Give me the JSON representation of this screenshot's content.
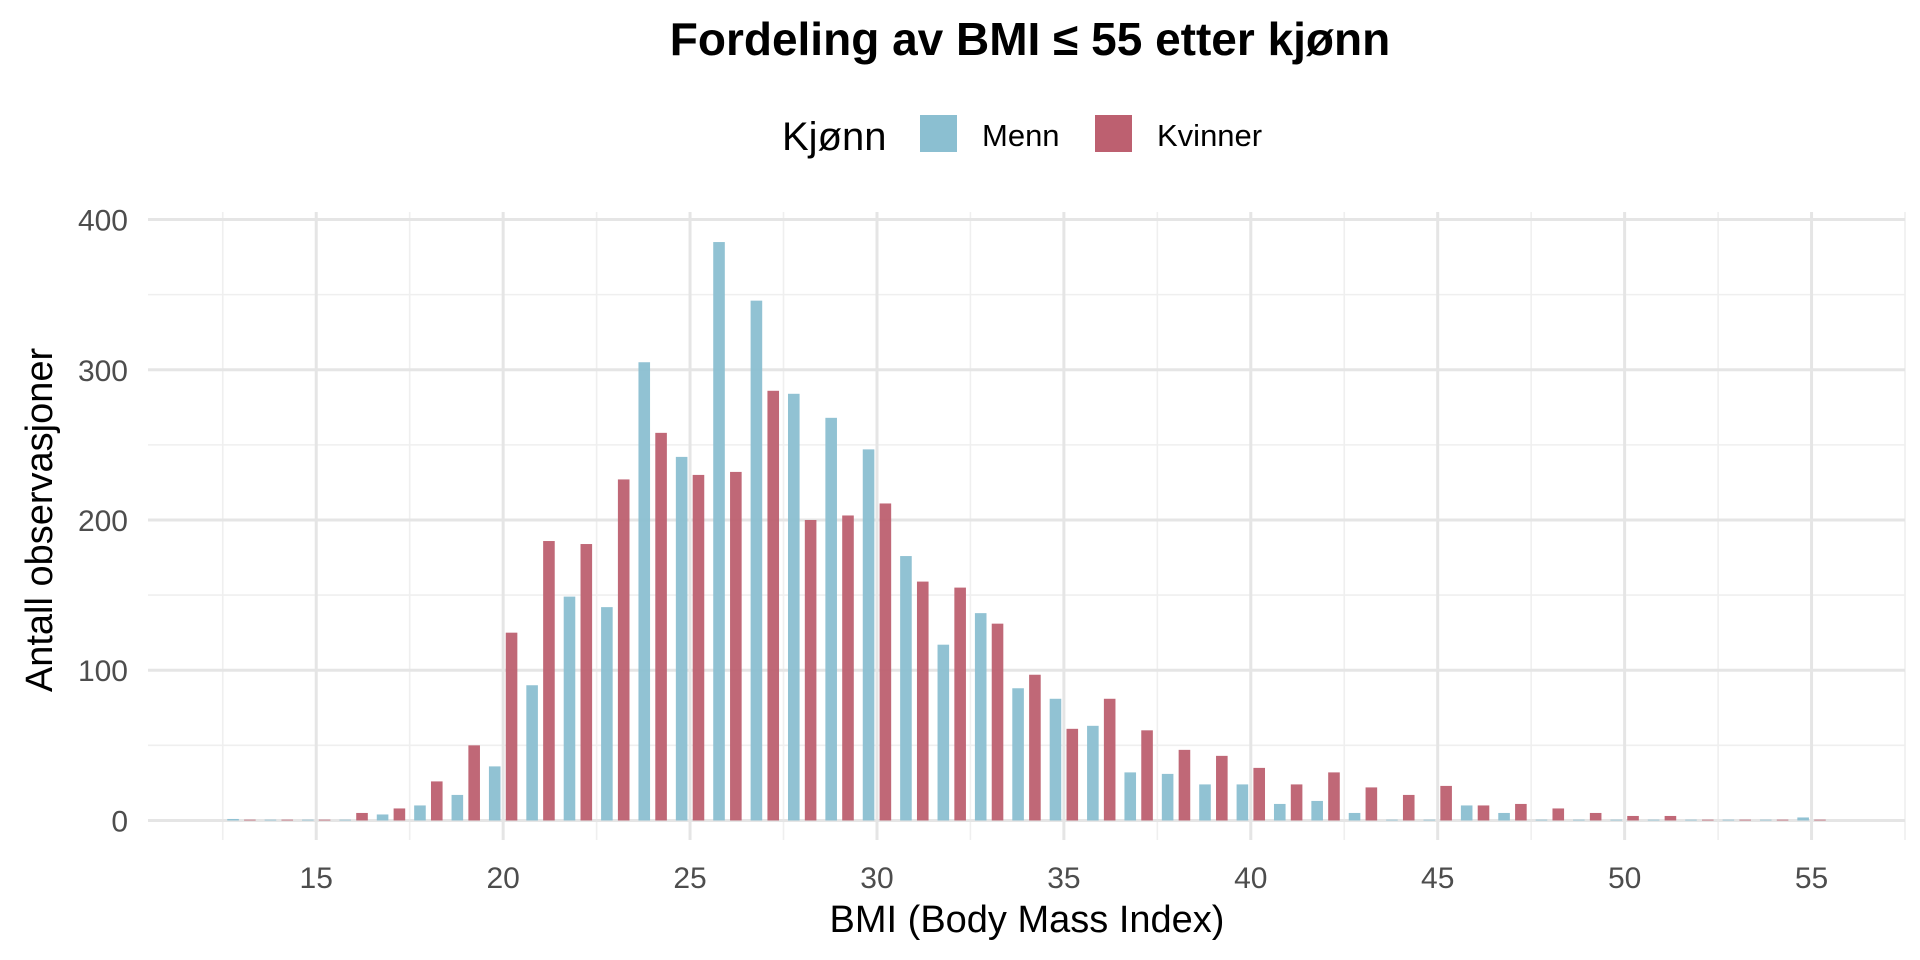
{
  "chart_data": {
    "type": "bar",
    "title": "Fordeling av BMI ≤ 55 etter kjønn",
    "xlabel": "BMI (Body Mass Index)",
    "ylabel": "Antall observasjoner",
    "xlim": [
      10.5,
      57.5
    ],
    "ylim": [
      -13,
      405
    ],
    "xticks": [
      15,
      20,
      25,
      30,
      35,
      40,
      45,
      50,
      55
    ],
    "yticks": [
      0,
      100,
      200,
      300,
      400
    ],
    "grid": true,
    "legend": {
      "title": "Kjønn",
      "placement": "top"
    },
    "categories": [
      13,
      14,
      15,
      16,
      17,
      18,
      19,
      20,
      21,
      22,
      23,
      24,
      25,
      26,
      27,
      28,
      29,
      30,
      31,
      32,
      33,
      34,
      35,
      36,
      37,
      38,
      39,
      40,
      41,
      42,
      43,
      44,
      45,
      46,
      47,
      48,
      49,
      50,
      51,
      52,
      53,
      54,
      55
    ],
    "series": [
      {
        "name": "Menn",
        "color": "#8bbfd1",
        "values": [
          1,
          0,
          0,
          0,
          4,
          10,
          17,
          36,
          90,
          149,
          142,
          305,
          242,
          385,
          346,
          284,
          268,
          247,
          176,
          117,
          138,
          88,
          81,
          63,
          32,
          31,
          24,
          24,
          11,
          13,
          5,
          0,
          0,
          10,
          5,
          0,
          0,
          0,
          0,
          0,
          0,
          0,
          2
        ]
      },
      {
        "name": "Kvinner",
        "color": "#bd6070",
        "values": [
          0,
          0,
          0,
          5,
          8,
          26,
          50,
          125,
          186,
          184,
          227,
          258,
          230,
          232,
          286,
          200,
          203,
          211,
          159,
          155,
          131,
          97,
          61,
          81,
          60,
          47,
          43,
          35,
          24,
          32,
          22,
          17,
          23,
          10,
          11,
          8,
          5,
          3,
          3,
          0,
          0,
          0,
          0
        ]
      }
    ]
  }
}
